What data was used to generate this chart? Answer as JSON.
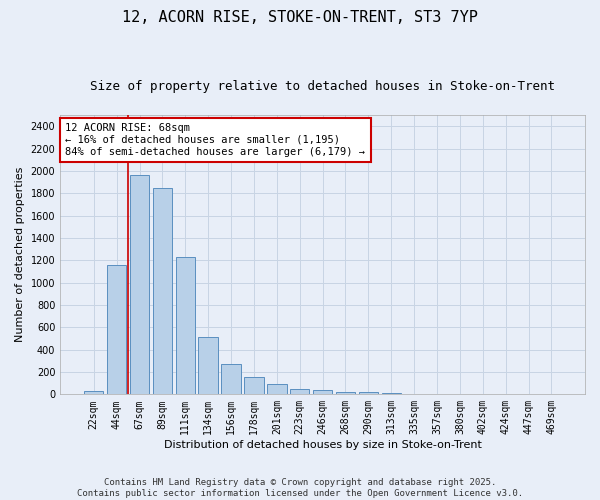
{
  "title_line1": "12, ACORN RISE, STOKE-ON-TRENT, ST3 7YP",
  "title_line2": "Size of property relative to detached houses in Stoke-on-Trent",
  "xlabel": "Distribution of detached houses by size in Stoke-on-Trent",
  "ylabel": "Number of detached properties",
  "categories": [
    "22sqm",
    "44sqm",
    "67sqm",
    "89sqm",
    "111sqm",
    "134sqm",
    "156sqm",
    "178sqm",
    "201sqm",
    "223sqm",
    "246sqm",
    "268sqm",
    "290sqm",
    "313sqm",
    "335sqm",
    "357sqm",
    "380sqm",
    "402sqm",
    "424sqm",
    "447sqm",
    "469sqm"
  ],
  "values": [
    28,
    1160,
    1960,
    1850,
    1230,
    515,
    270,
    155,
    90,
    50,
    40,
    22,
    18,
    8,
    0,
    0,
    0,
    0,
    0,
    0,
    0
  ],
  "bar_color": "#b8d0e8",
  "bar_edge_color": "#5a8fc0",
  "grid_color": "#c8d4e4",
  "background_color": "#e8eef8",
  "annotation_text": "12 ACORN RISE: 68sqm\n← 16% of detached houses are smaller (1,195)\n84% of semi-detached houses are larger (6,179) →",
  "annotation_box_color": "#ffffff",
  "annotation_box_edge_color": "#cc0000",
  "vline_color": "#cc0000",
  "vline_x_index": 2,
  "ylim": [
    0,
    2500
  ],
  "yticks": [
    0,
    200,
    400,
    600,
    800,
    1000,
    1200,
    1400,
    1600,
    1800,
    2000,
    2200,
    2400
  ],
  "footer_line1": "Contains HM Land Registry data © Crown copyright and database right 2025.",
  "footer_line2": "Contains public sector information licensed under the Open Government Licence v3.0.",
  "title_fontsize": 11,
  "subtitle_fontsize": 9,
  "axis_label_fontsize": 8,
  "tick_fontsize": 7,
  "annotation_fontsize": 7.5,
  "footer_fontsize": 6.5
}
